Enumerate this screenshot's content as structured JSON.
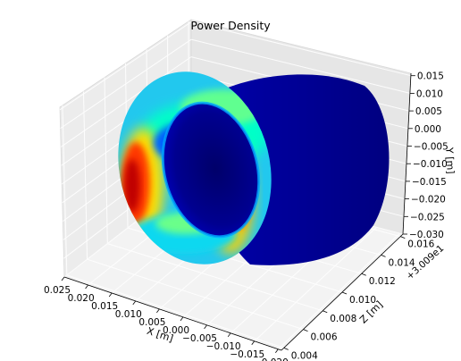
{
  "chart_data": {
    "type": "surface3d",
    "title": "Power Density",
    "colormap": "jet",
    "x_axis": {
      "label": "X [m]",
      "ticks": [
        "0.025",
        "0.020",
        "0.015",
        "0.010",
        "0.005",
        "0.000",
        "−0.005",
        "−0.010",
        "−0.015",
        "−0.020"
      ],
      "range": [
        -0.02,
        0.025
      ]
    },
    "z_axis": {
      "label": "Z [m]",
      "ticks": [
        "0.004",
        "0.006",
        "0.008",
        "0.010",
        "0.012",
        "0.014",
        "0.016"
      ],
      "range": [
        0.004,
        0.016
      ],
      "offset_text": "+3.009e1"
    },
    "y_axis": {
      "label": "Y [m]",
      "ticks": [
        "0.015",
        "0.010",
        "0.005",
        "0.000",
        "−0.005",
        "−0.010",
        "−0.015",
        "−0.020",
        "−0.025",
        "−0.030"
      ],
      "range": [
        -0.03,
        0.015
      ]
    },
    "grid": true,
    "surface": "elliptical tube, high density (red) on left/front face, low density (dark blue) on back"
  }
}
